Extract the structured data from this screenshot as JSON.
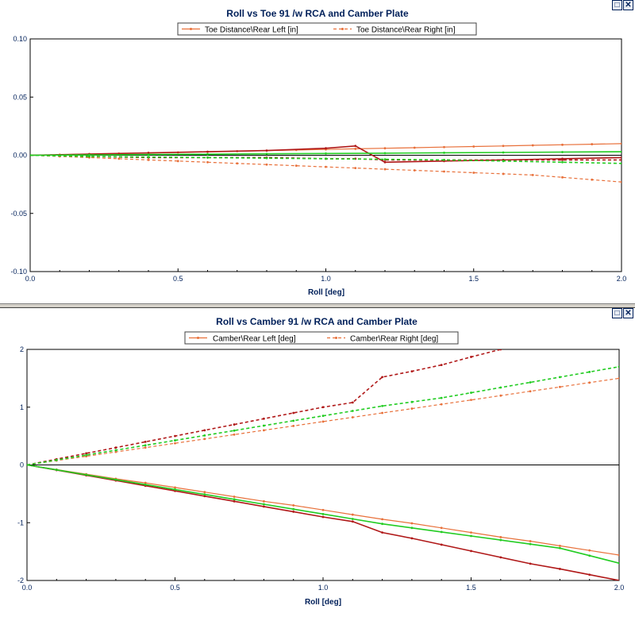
{
  "charts": [
    {
      "title": "Roll vs Toe 91 /w RCA and Camber Plate",
      "xlabel": "Roll [deg]",
      "legend": [
        {
          "label": "Toe Distance\\Rear Left [in]",
          "color": "#e8703a",
          "dash": false
        },
        {
          "label": "Toe Distance\\Rear Right [in]",
          "color": "#e8703a",
          "dash": true
        }
      ],
      "x_ticks": [
        "0.0",
        "0.5",
        "1.0",
        "1.5",
        "2.0"
      ],
      "y_ticks": [
        "0.10",
        "0.05",
        "0.00",
        "-0.05",
        "-0.10"
      ]
    },
    {
      "title": "Roll vs Camber 91 /w RCA and Camber Plate",
      "xlabel": "Roll [deg]",
      "legend": [
        {
          "label": "Camber\\Rear Left [deg]",
          "color": "#e8703a",
          "dash": false
        },
        {
          "label": "Camber\\Rear Right [deg]",
          "color": "#e8703a",
          "dash": true
        }
      ],
      "x_ticks": [
        "0.0",
        "0.5",
        "1.0",
        "1.5",
        "2.0"
      ],
      "y_ticks": [
        "2",
        "1",
        "0",
        "-1",
        "-2"
      ]
    }
  ],
  "chart_data": [
    {
      "type": "line",
      "title": "Roll vs Toe 91 /w RCA and Camber Plate",
      "xlabel": "Roll [deg]",
      "ylabel": "",
      "xlim": [
        0,
        2
      ],
      "ylim": [
        -0.1,
        0.1
      ],
      "grid": false,
      "legend_position": "top-center",
      "series": [
        {
          "name": "Toe Distance\\Rear Left [in]",
          "color": "#e8703a",
          "dash": false,
          "x": [
            0,
            0.1,
            0.2,
            0.3,
            0.4,
            0.5,
            0.6,
            0.7,
            0.8,
            0.9,
            1.0,
            1.1,
            1.2,
            1.3,
            1.4,
            1.5,
            1.6,
            1.7,
            1.8,
            1.9,
            2.0
          ],
          "y": [
            0,
            0.0005,
            0.001,
            0.0015,
            0.002,
            0.0025,
            0.003,
            0.0035,
            0.004,
            0.0045,
            0.005,
            0.0055,
            0.006,
            0.0065,
            0.007,
            0.0075,
            0.008,
            0.0085,
            0.009,
            0.0095,
            0.01
          ]
        },
        {
          "name": "Toe Distance\\Rear Right [in]",
          "color": "#e8703a",
          "dash": true,
          "x": [
            0,
            0.1,
            0.2,
            0.3,
            0.4,
            0.5,
            0.6,
            0.7,
            0.8,
            0.9,
            1.0,
            1.1,
            1.2,
            1.3,
            1.4,
            1.5,
            1.6,
            1.7,
            1.8,
            1.9,
            2.0
          ],
          "y": [
            0,
            -0.001,
            -0.002,
            -0.003,
            -0.004,
            -0.005,
            -0.006,
            -0.007,
            -0.008,
            -0.009,
            -0.01,
            -0.011,
            -0.012,
            -0.013,
            -0.014,
            -0.015,
            -0.016,
            -0.017,
            -0.019,
            -0.021,
            -0.023
          ]
        },
        {
          "color": "#b01818",
          "dash": false,
          "x": [
            0,
            0.2,
            0.4,
            0.6,
            0.8,
            1.0,
            1.1,
            1.2,
            1.4,
            1.6,
            1.8,
            2.0
          ],
          "y": [
            0,
            0.001,
            0.002,
            0.003,
            0.004,
            0.006,
            0.008,
            -0.006,
            -0.005,
            -0.004,
            -0.003,
            -0.002
          ]
        },
        {
          "color": "#b01818",
          "dash": true,
          "x": [
            0,
            0.2,
            0.4,
            0.6,
            0.8,
            1.0,
            1.1,
            1.2,
            1.4,
            1.6,
            1.8,
            2.0
          ],
          "y": [
            0,
            -0.001,
            -0.002,
            -0.002,
            -0.002,
            -0.003,
            -0.003,
            -0.004,
            -0.004,
            -0.004,
            -0.004,
            -0.004
          ]
        },
        {
          "color": "#22cc22",
          "dash": false,
          "x": [
            0,
            0.2,
            0.4,
            0.6,
            0.8,
            1.0,
            1.2,
            1.4,
            1.6,
            1.8,
            2.0
          ],
          "y": [
            0,
            0.0003,
            0.0006,
            0.0009,
            0.0012,
            0.0015,
            0.0018,
            0.0021,
            0.0024,
            0.0027,
            0.003
          ]
        },
        {
          "color": "#22cc22",
          "dash": true,
          "x": [
            0,
            0.2,
            0.4,
            0.6,
            0.8,
            1.0,
            1.2,
            1.4,
            1.6,
            1.8,
            2.0
          ],
          "y": [
            0,
            -0.001,
            -0.0015,
            -0.002,
            -0.0025,
            -0.003,
            -0.0035,
            -0.004,
            -0.005,
            -0.006,
            -0.007
          ]
        }
      ]
    },
    {
      "type": "line",
      "title": "Roll vs Camber 91 /w RCA and Camber Plate",
      "xlabel": "Roll [deg]",
      "ylabel": "",
      "xlim": [
        0,
        2
      ],
      "ylim": [
        -2,
        2
      ],
      "grid": false,
      "legend_position": "top-center",
      "series": [
        {
          "name": "Camber\\Rear Left [deg]",
          "color": "#e8703a",
          "dash": false,
          "x": [
            0,
            0.1,
            0.2,
            0.3,
            0.4,
            0.5,
            0.6,
            0.7,
            0.8,
            0.9,
            1.0,
            1.1,
            1.2,
            1.3,
            1.4,
            1.5,
            1.6,
            1.7,
            1.8,
            1.9,
            2.0
          ],
          "y": [
            0,
            -0.08,
            -0.16,
            -0.24,
            -0.31,
            -0.39,
            -0.47,
            -0.55,
            -0.63,
            -0.7,
            -0.78,
            -0.86,
            -0.94,
            -1.01,
            -1.09,
            -1.17,
            -1.25,
            -1.32,
            -1.4,
            -1.48,
            -1.56
          ]
        },
        {
          "name": "Camber\\Rear Right [deg]",
          "color": "#e8703a",
          "dash": true,
          "x": [
            0,
            0.1,
            0.2,
            0.3,
            0.4,
            0.5,
            0.6,
            0.7,
            0.8,
            0.9,
            1.0,
            1.1,
            1.2,
            1.3,
            1.4,
            1.5,
            1.6,
            1.7,
            1.8,
            1.9,
            2.0
          ],
          "y": [
            0,
            0.075,
            0.15,
            0.225,
            0.3,
            0.375,
            0.45,
            0.525,
            0.6,
            0.675,
            0.75,
            0.825,
            0.9,
            0.975,
            1.05,
            1.125,
            1.2,
            1.275,
            1.35,
            1.425,
            1.5
          ]
        },
        {
          "color": "#b01818",
          "dash": false,
          "x": [
            0,
            0.1,
            0.2,
            0.3,
            0.4,
            0.5,
            0.6,
            0.7,
            0.8,
            0.9,
            1.0,
            1.1,
            1.2,
            1.3,
            1.4,
            1.5,
            1.6,
            1.7,
            1.8,
            1.9,
            2.0
          ],
          "y": [
            0,
            -0.09,
            -0.18,
            -0.27,
            -0.36,
            -0.45,
            -0.54,
            -0.63,
            -0.72,
            -0.81,
            -0.9,
            -0.98,
            -1.17,
            -1.27,
            -1.38,
            -1.49,
            -1.6,
            -1.71,
            -1.8,
            -1.9,
            -2.0
          ]
        },
        {
          "color": "#b01818",
          "dash": true,
          "x": [
            0,
            0.1,
            0.2,
            0.3,
            0.4,
            0.5,
            0.6,
            0.7,
            0.8,
            0.9,
            1.0,
            1.1,
            1.2,
            1.3,
            1.4,
            1.5,
            1.6
          ],
          "y": [
            0,
            0.1,
            0.2,
            0.3,
            0.4,
            0.5,
            0.6,
            0.7,
            0.8,
            0.9,
            1.0,
            1.08,
            1.52,
            1.62,
            1.73,
            1.87,
            2.0
          ]
        },
        {
          "color": "#22cc22",
          "dash": false,
          "x": [
            0,
            0.1,
            0.2,
            0.3,
            0.4,
            0.5,
            0.6,
            0.7,
            0.8,
            0.9,
            1.0,
            1.1,
            1.2,
            1.3,
            1.4,
            1.5,
            1.6,
            1.7,
            1.8,
            1.9,
            2.0
          ],
          "y": [
            0,
            -0.085,
            -0.17,
            -0.255,
            -0.34,
            -0.425,
            -0.51,
            -0.595,
            -0.68,
            -0.765,
            -0.85,
            -0.935,
            -1.02,
            -1.09,
            -1.16,
            -1.23,
            -1.3,
            -1.37,
            -1.44,
            -1.57,
            -1.7
          ]
        },
        {
          "color": "#22cc22",
          "dash": true,
          "x": [
            0,
            0.1,
            0.2,
            0.3,
            0.4,
            0.5,
            0.6,
            0.7,
            0.8,
            0.9,
            1.0,
            1.1,
            1.2,
            1.3,
            1.4,
            1.5,
            1.6,
            1.7,
            1.8,
            1.9,
            2.0
          ],
          "y": [
            0,
            0.085,
            0.17,
            0.255,
            0.34,
            0.425,
            0.51,
            0.595,
            0.68,
            0.765,
            0.85,
            0.935,
            1.02,
            1.09,
            1.16,
            1.25,
            1.34,
            1.43,
            1.52,
            1.61,
            1.7
          ]
        }
      ]
    }
  ]
}
